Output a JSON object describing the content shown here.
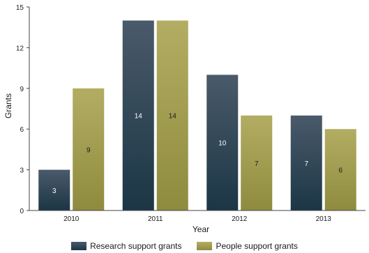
{
  "chart_data": {
    "type": "bar",
    "title": "",
    "xlabel": "Year",
    "ylabel": "Grants",
    "ylim": [
      0,
      15
    ],
    "yticks": [
      0,
      3,
      6,
      9,
      12,
      15
    ],
    "categories": [
      "2010",
      "2011",
      "2012",
      "2013"
    ],
    "series": [
      {
        "name": "Research support grants",
        "values": [
          3,
          14,
          10,
          7
        ],
        "color_top": "#4a5a6a",
        "color_bottom": "#1b3645",
        "label_color": "#ffffff"
      },
      {
        "name": "People support grants",
        "values": [
          9,
          14,
          7,
          6
        ],
        "color_top": "#b2ad62",
        "color_bottom": "#8f8b3e",
        "label_color": "#1a1a1a"
      }
    ],
    "grid": false,
    "legend_position": "bottom"
  }
}
